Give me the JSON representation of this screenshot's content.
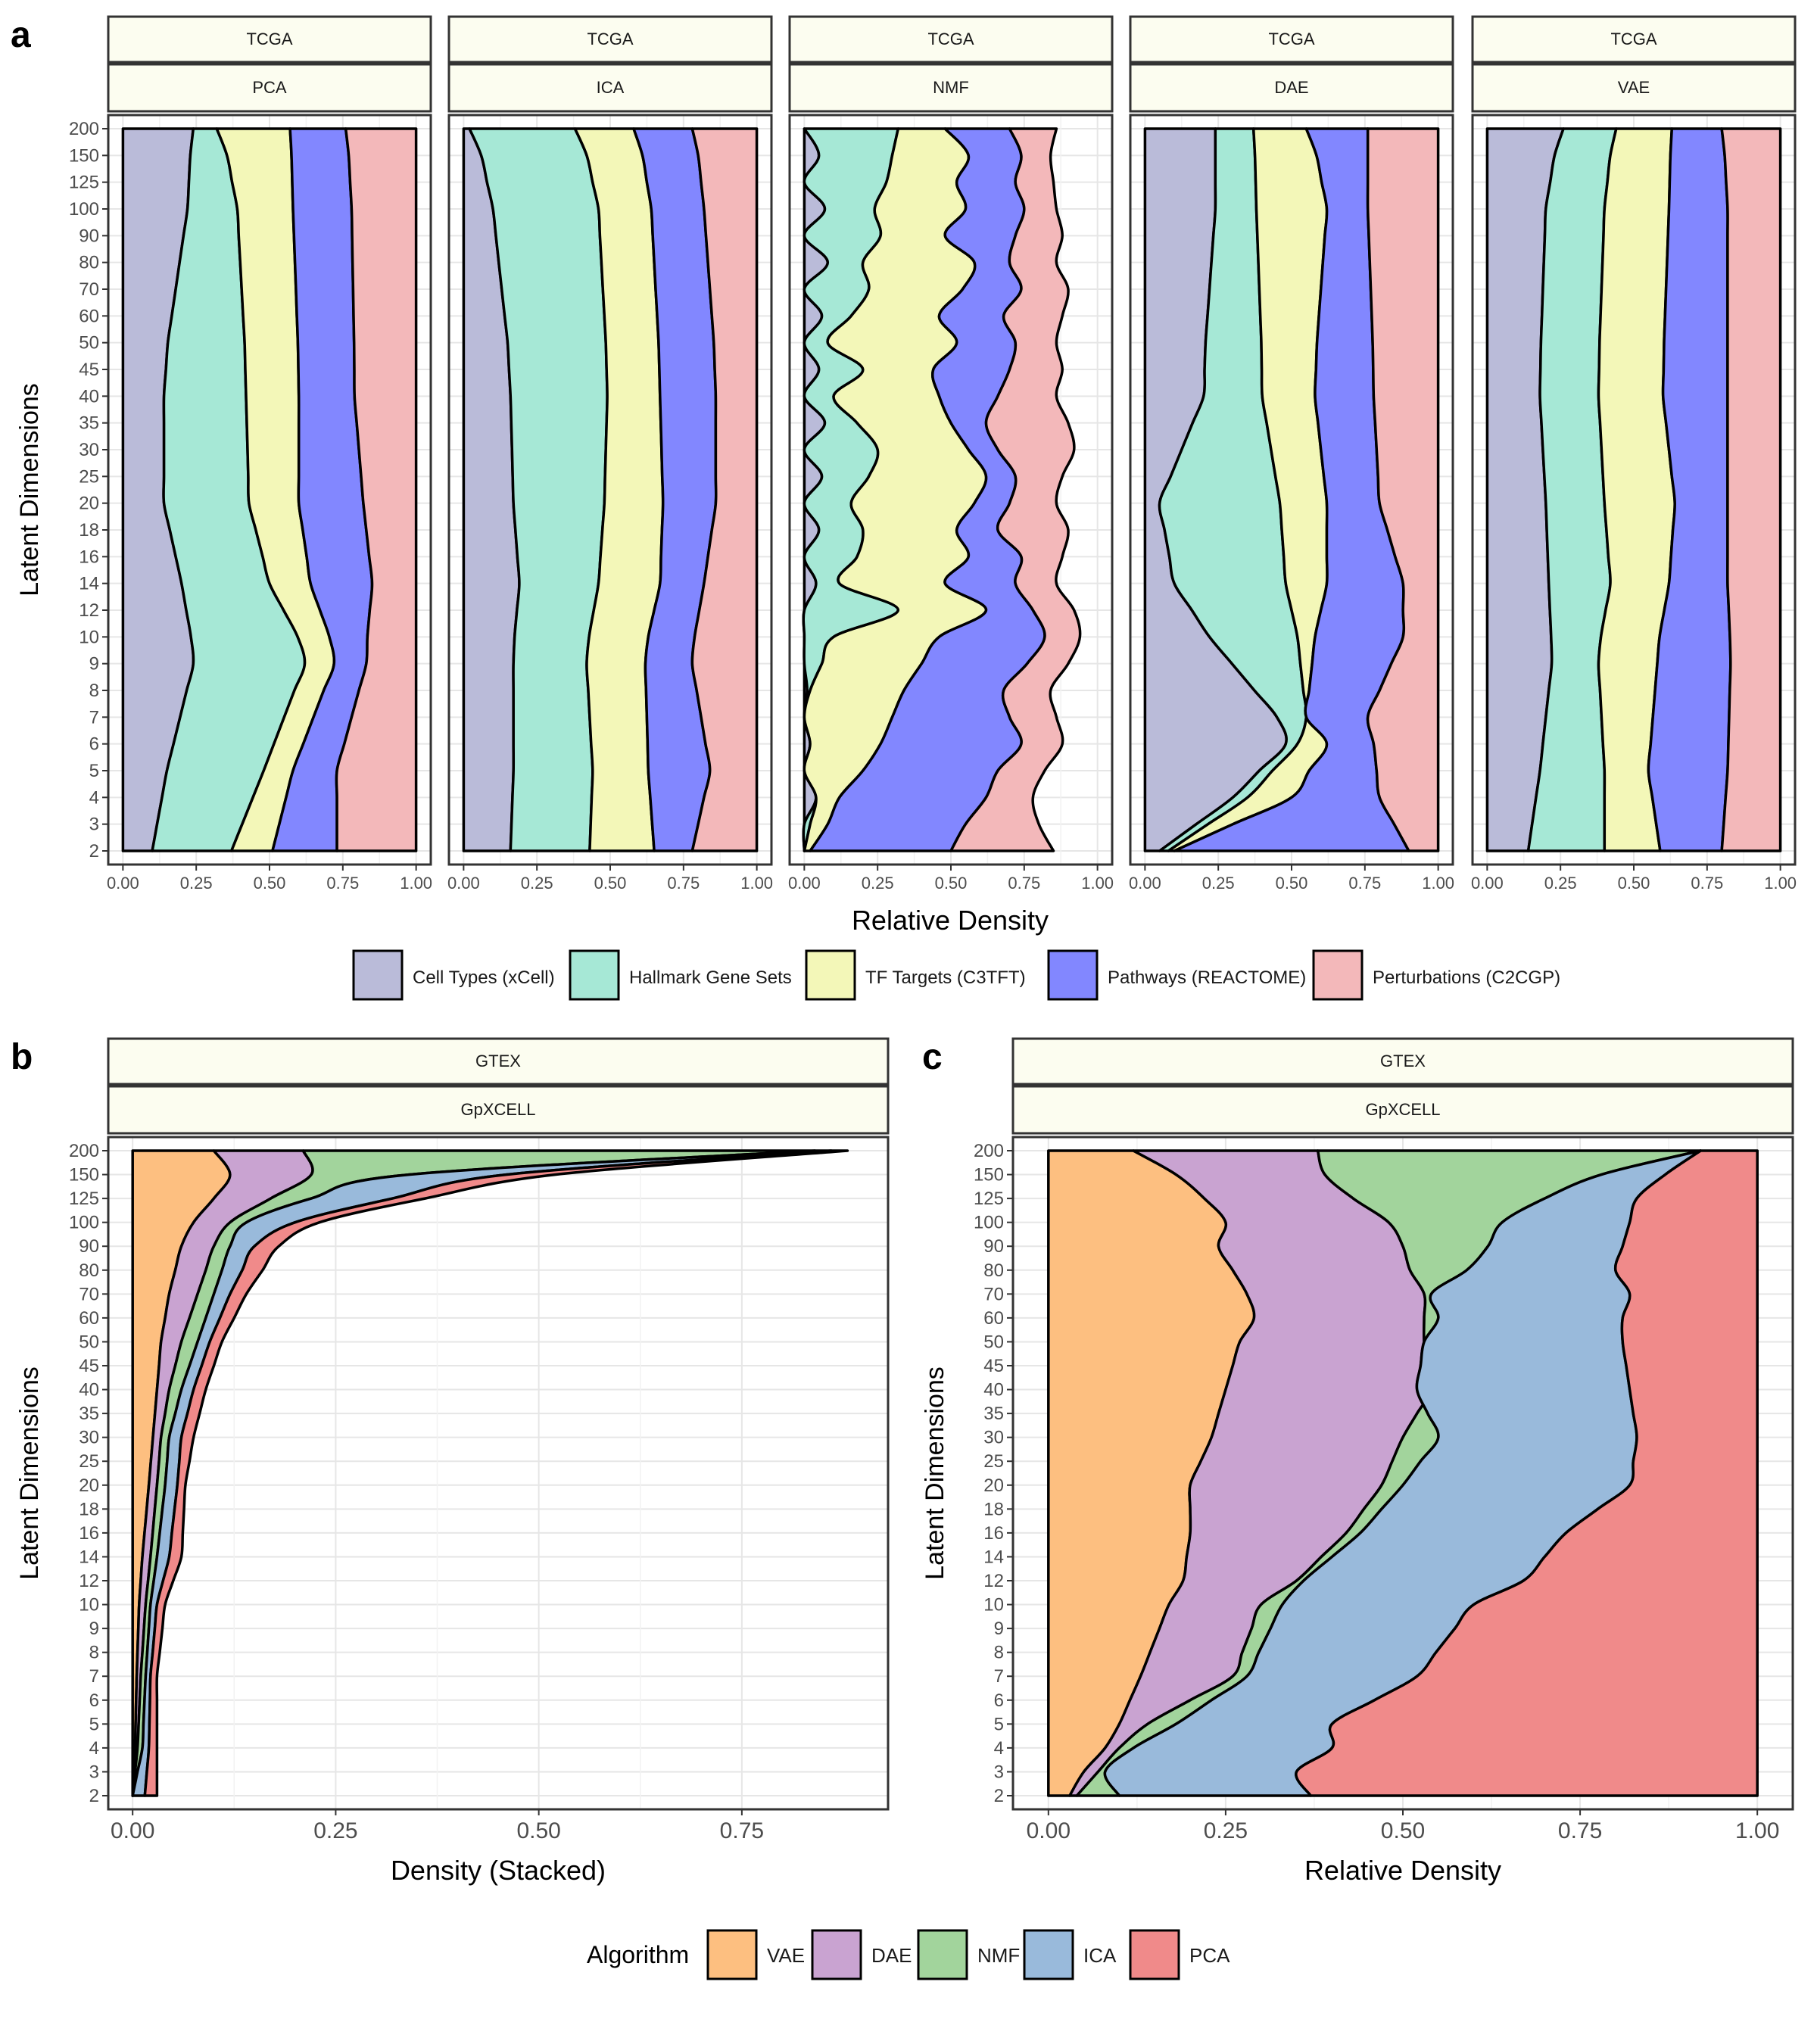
{
  "figure": {
    "panel_letters": {
      "a": "a",
      "b": "b",
      "c": "c"
    },
    "colors": {
      "strip_fill": "#FCFDF0",
      "grid": "#E6E6E6",
      "axis_text": "#4D4D4D",
      "panel_border": "#333333"
    }
  },
  "chart_data": [
    {
      "id": "a",
      "type": "area",
      "subtype": "stacked-relative-density (fill)",
      "xlabel": "Relative Density",
      "ylabel": "Latent Dimensions",
      "xlim": [
        0,
        1
      ],
      "x_ticks": [
        "0.00",
        "0.25",
        "0.50",
        "0.75",
        "1.00"
      ],
      "y_ticks": [
        "2",
        "3",
        "4",
        "5",
        "6",
        "7",
        "8",
        "9",
        "10",
        "12",
        "14",
        "16",
        "18",
        "20",
        "25",
        "30",
        "35",
        "40",
        "45",
        "50",
        "60",
        "70",
        "80",
        "90",
        "100",
        "125",
        "150",
        "200"
      ],
      "grid": true,
      "legend_position": "bottom",
      "series": [
        {
          "name": "Cell Types (xCell)",
          "color": "#BABBD9"
        },
        {
          "name": "Hallmark Gene Sets",
          "color": "#A6E8D6"
        },
        {
          "name": "TF Targets (C3TFT)",
          "color": "#F3F7B8"
        },
        {
          "name": "Pathways (REACTOME)",
          "color": "#8287FF"
        },
        {
          "name": "Perturbations (C2CGP)",
          "color": "#F3B8BA"
        }
      ],
      "facets": [
        {
          "strip_top": "TCGA",
          "strip_bottom": "PCA",
          "knots_y": [
            2,
            5,
            9,
            14,
            20,
            40,
            100,
            200
          ],
          "boundaries": [
            [
              0.1,
              0.15,
              0.24,
              0.2,
              0.14,
              0.14,
              0.22,
              0.24
            ],
            [
              0.37,
              0.48,
              0.62,
              0.5,
              0.43,
              0.42,
              0.39,
              0.32
            ],
            [
              0.51,
              0.58,
              0.72,
              0.64,
              0.6,
              0.6,
              0.58,
              0.57
            ],
            [
              0.73,
              0.73,
              0.83,
              0.85,
              0.82,
              0.79,
              0.78,
              0.76
            ]
          ]
        },
        {
          "strip_top": "TCGA",
          "strip_bottom": "ICA",
          "knots_y": [
            2,
            5,
            9,
            14,
            20,
            40,
            100,
            200
          ],
          "boundaries": [
            [
              0.16,
              0.17,
              0.17,
              0.19,
              0.17,
              0.16,
              0.1,
              0.02
            ],
            [
              0.43,
              0.44,
              0.42,
              0.46,
              0.48,
              0.49,
              0.46,
              0.38
            ],
            [
              0.65,
              0.63,
              0.62,
              0.67,
              0.68,
              0.67,
              0.64,
              0.58
            ],
            [
              0.78,
              0.84,
              0.78,
              0.82,
              0.86,
              0.86,
              0.82,
              0.78
            ]
          ]
        },
        {
          "strip_top": "TCGA",
          "strip_bottom": "NMF",
          "knots_y": [
            2,
            3,
            4,
            5,
            6,
            7,
            8,
            9,
            10,
            12,
            14,
            16,
            18,
            20,
            25,
            30,
            35,
            40,
            45,
            50,
            60,
            70,
            80,
            90,
            100,
            125,
            150,
            200
          ],
          "boundaries": [
            [
              0.0,
              0.0,
              0.04,
              0.0,
              0.02,
              0.0,
              0.01,
              0.0,
              0.0,
              0.0,
              0.04,
              0.0,
              0.05,
              0.0,
              0.06,
              0.0,
              0.07,
              0.0,
              0.05,
              0.0,
              0.06,
              0.0,
              0.08,
              0.0,
              0.07,
              0.0,
              0.05,
              0.0
            ],
            [
              0.0,
              0.02,
              0.04,
              0.0,
              0.02,
              0.0,
              0.02,
              0.06,
              0.1,
              0.32,
              0.12,
              0.18,
              0.2,
              0.16,
              0.22,
              0.25,
              0.18,
              0.1,
              0.2,
              0.08,
              0.16,
              0.22,
              0.2,
              0.26,
              0.24,
              0.28,
              0.3,
              0.32
            ],
            [
              0.02,
              0.08,
              0.12,
              0.2,
              0.26,
              0.3,
              0.34,
              0.4,
              0.46,
              0.62,
              0.48,
              0.56,
              0.52,
              0.58,
              0.62,
              0.56,
              0.5,
              0.46,
              0.44,
              0.52,
              0.46,
              0.54,
              0.58,
              0.48,
              0.55,
              0.52,
              0.56,
              0.48
            ],
            [
              0.5,
              0.55,
              0.62,
              0.66,
              0.74,
              0.7,
              0.68,
              0.76,
              0.82,
              0.78,
              0.72,
              0.74,
              0.66,
              0.7,
              0.72,
              0.66,
              0.62,
              0.66,
              0.7,
              0.72,
              0.68,
              0.74,
              0.7,
              0.72,
              0.75,
              0.72,
              0.74,
              0.7
            ],
            [
              0.85,
              0.8,
              0.78,
              0.82,
              0.88,
              0.86,
              0.84,
              0.9,
              0.94,
              0.92,
              0.86,
              0.88,
              0.9,
              0.86,
              0.88,
              0.92,
              0.9,
              0.86,
              0.88,
              0.86,
              0.88,
              0.9,
              0.86,
              0.88,
              0.86,
              0.85,
              0.84,
              0.86
            ]
          ]
        },
        {
          "strip_top": "TCGA",
          "strip_bottom": "DAE",
          "knots_y": [
            2,
            4,
            6,
            7,
            10,
            14,
            20,
            40,
            100,
            200
          ],
          "boundaries": [
            [
              0.05,
              0.3,
              0.48,
              0.45,
              0.22,
              0.1,
              0.05,
              0.2,
              0.24,
              0.24
            ],
            [
              0.08,
              0.35,
              0.52,
              0.55,
              0.52,
              0.48,
              0.46,
              0.4,
              0.38,
              0.37
            ],
            [
              0.1,
              0.5,
              0.62,
              0.55,
              0.58,
              0.62,
              0.62,
              0.58,
              0.62,
              0.55
            ],
            [
              0.9,
              0.8,
              0.78,
              0.76,
              0.88,
              0.88,
              0.8,
              0.78,
              0.76,
              0.76
            ],
            [
              1.0,
              1.0,
              1.0,
              1.0,
              1.0,
              1.0,
              1.0,
              1.0,
              1.0,
              1.0
            ]
          ]
        },
        {
          "strip_top": "TCGA",
          "strip_bottom": "VAE",
          "knots_y": [
            2,
            5,
            9,
            14,
            20,
            40,
            100,
            200
          ],
          "boundaries": [
            [
              0.14,
              0.18,
              0.22,
              0.21,
              0.2,
              0.18,
              0.2,
              0.26
            ],
            [
              0.4,
              0.4,
              0.38,
              0.42,
              0.4,
              0.38,
              0.4,
              0.44
            ],
            [
              0.59,
              0.55,
              0.58,
              0.62,
              0.64,
              0.6,
              0.62,
              0.63
            ],
            [
              0.8,
              0.82,
              0.83,
              0.82,
              0.82,
              0.82,
              0.82,
              0.8
            ]
          ]
        }
      ]
    },
    {
      "id": "b",
      "type": "area",
      "subtype": "stacked-density",
      "strip_top": "GTEX",
      "strip_bottom": "GpXCELL",
      "xlabel": "Density (Stacked)",
      "ylabel": "Latent Dimensions",
      "xlim": [
        -0.03,
        0.93
      ],
      "x_ticks": [
        "0.00",
        "0.25",
        "0.50",
        "0.75"
      ],
      "y_ticks": [
        "2",
        "3",
        "4",
        "5",
        "6",
        "7",
        "8",
        "9",
        "10",
        "12",
        "14",
        "16",
        "18",
        "20",
        "25",
        "30",
        "35",
        "40",
        "45",
        "50",
        "60",
        "70",
        "80",
        "90",
        "100",
        "125",
        "150",
        "200"
      ],
      "grid": true,
      "knots_y": [
        2,
        4,
        7,
        10,
        14,
        20,
        30,
        40,
        50,
        70,
        90,
        100,
        125,
        150,
        200
      ],
      "stacked_values": [
        [
          0.0,
          0.003,
          0.005,
          0.008,
          0.012,
          0.02,
          0.025,
          0.03,
          0.035,
          0.045,
          0.06,
          0.075,
          0.1,
          0.12,
          0.1
        ],
        [
          0.0,
          0.006,
          0.01,
          0.016,
          0.022,
          0.03,
          0.035,
          0.045,
          0.06,
          0.08,
          0.1,
          0.12,
          0.17,
          0.22,
          0.21
        ],
        [
          0.0,
          0.012,
          0.016,
          0.022,
          0.03,
          0.04,
          0.045,
          0.06,
          0.08,
          0.1,
          0.12,
          0.14,
          0.22,
          0.34,
          0.84
        ],
        [
          0.015,
          0.02,
          0.022,
          0.03,
          0.045,
          0.055,
          0.06,
          0.075,
          0.095,
          0.12,
          0.15,
          0.2,
          0.32,
          0.46,
          0.86
        ],
        [
          0.03,
          0.03,
          0.03,
          0.04,
          0.06,
          0.065,
          0.075,
          0.09,
          0.11,
          0.14,
          0.18,
          0.23,
          0.36,
          0.52,
          0.88
        ]
      ]
    },
    {
      "id": "c",
      "type": "area",
      "subtype": "stacked-relative-density (fill)",
      "strip_top": "GTEX",
      "strip_bottom": "GpXCELL",
      "xlabel": "Relative Density",
      "ylabel": "Latent Dimensions",
      "xlim": [
        -0.05,
        1.05
      ],
      "x_ticks": [
        "0.00",
        "0.25",
        "0.50",
        "0.75",
        "1.00"
      ],
      "y_ticks": [
        "2",
        "3",
        "4",
        "5",
        "6",
        "7",
        "8",
        "9",
        "10",
        "12",
        "14",
        "16",
        "18",
        "20",
        "25",
        "30",
        "35",
        "40",
        "45",
        "50",
        "60",
        "70",
        "80",
        "90",
        "100",
        "125",
        "150",
        "200"
      ],
      "grid": true,
      "legend_title": "Algorithm",
      "legend_position": "bottom",
      "series": [
        {
          "name": "VAE",
          "color": "#FDBF80"
        },
        {
          "name": "DAE",
          "color": "#C9A3D1"
        },
        {
          "name": "NMF",
          "color": "#A2D49C"
        },
        {
          "name": "ICA",
          "color": "#99BADB"
        },
        {
          "name": "PCA",
          "color": "#F08A8A"
        }
      ],
      "knots_y": [
        2,
        3,
        4,
        5,
        7,
        10,
        12,
        16,
        20,
        30,
        40,
        50,
        60,
        70,
        80,
        90,
        100,
        125,
        150,
        200
      ],
      "boundaries": [
        [
          0.03,
          0.05,
          0.08,
          0.1,
          0.13,
          0.17,
          0.19,
          0.2,
          0.2,
          0.23,
          0.25,
          0.27,
          0.29,
          0.28,
          0.26,
          0.24,
          0.25,
          0.22,
          0.18,
          0.12
        ],
        [
          0.04,
          0.07,
          0.1,
          0.14,
          0.26,
          0.3,
          0.35,
          0.42,
          0.47,
          0.5,
          0.54,
          0.53,
          0.53,
          0.53,
          0.51,
          0.5,
          0.48,
          0.43,
          0.39,
          0.38
        ],
        [
          0.1,
          0.08,
          0.12,
          0.18,
          0.28,
          0.33,
          0.36,
          0.44,
          0.5,
          0.55,
          0.52,
          0.53,
          0.55,
          0.54,
          0.59,
          0.62,
          0.64,
          0.7,
          0.78,
          0.92
        ],
        [
          0.37,
          0.35,
          0.4,
          0.4,
          0.52,
          0.6,
          0.67,
          0.73,
          0.82,
          0.83,
          0.82,
          0.81,
          0.81,
          0.82,
          0.8,
          0.81,
          0.82,
          0.83,
          0.87,
          0.92
        ]
      ]
    }
  ]
}
